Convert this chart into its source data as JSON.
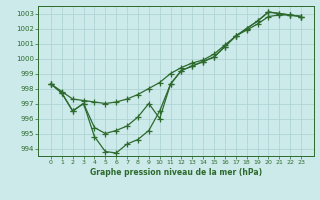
{
  "xlabel": "Graphe pression niveau de la mer (hPa)",
  "x": [
    0,
    1,
    2,
    3,
    4,
    5,
    6,
    7,
    8,
    9,
    10,
    11,
    12,
    13,
    14,
    15,
    16,
    17,
    18,
    19,
    20,
    21,
    22,
    23
  ],
  "s1": [
    998.3,
    997.7,
    996.5,
    997.0,
    994.8,
    993.8,
    993.7,
    994.3,
    994.6,
    995.2,
    996.5,
    998.3,
    999.2,
    999.5,
    999.8,
    1000.1,
    1000.8,
    1001.5,
    1002.0,
    1002.5,
    1003.1,
    1003.0,
    1002.9,
    1002.8
  ],
  "s2": [
    998.3,
    997.7,
    996.5,
    997.0,
    995.4,
    995.0,
    995.2,
    995.5,
    996.1,
    997.0,
    996.0,
    998.3,
    999.2,
    999.5,
    999.8,
    1000.1,
    1000.8,
    1001.5,
    1002.0,
    1002.5,
    1003.1,
    1003.0,
    1002.9,
    1002.8
  ],
  "s3": [
    998.3,
    997.8,
    997.3,
    997.2,
    997.1,
    997.0,
    997.1,
    997.3,
    997.6,
    998.0,
    998.4,
    999.0,
    999.4,
    999.7,
    999.9,
    1000.3,
    1000.9,
    1001.5,
    1001.9,
    1002.3,
    1002.8,
    1002.9,
    1002.9,
    1002.8
  ],
  "line_color": "#2d6a2d",
  "bg_color": "#cceaea",
  "grid_color": "#aacfcf",
  "ylim": [
    993.5,
    1003.5
  ],
  "yticks": [
    994,
    995,
    996,
    997,
    998,
    999,
    1000,
    1001,
    1002,
    1003
  ]
}
